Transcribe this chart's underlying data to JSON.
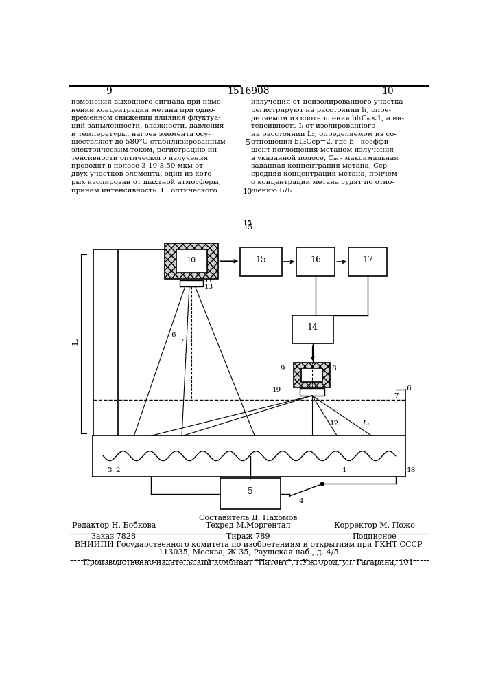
{
  "page_num_left": "9",
  "page_num_center": "1516908",
  "page_num_right": "10",
  "text_left": [
    "изменения выходного сигнала при изме-",
    "нении концентрации метана при одно-",
    "временном снижении влияния флуктуа-",
    "ций запыленности, влажности, давления",
    "и температуры, нагрев элемента осу-",
    "ществляют до 580°С стабилизированным",
    "электрическим током, регистрацию ин-",
    "тенсивности оптического излучения",
    "проводят в полосе 3,19-3,59 мкм от",
    "двух участков элемента, один из кото-",
    "рых изолирован от шахтной атмосферы,",
    "причем интенсивность  I₁  оптического"
  ],
  "text_right": [
    "излучения от неизолированного участка",
    "регистрируют на расстоянии l₁, опре-",
    "деляемом из соотношения bl₁Cₘ<1, а ин-",
    "тенсивность Iᵢ от изолированного -",
    "на расстоянии L₂, определяемом из со-",
    "отношения bL₂Cср=2, где b - коэффи-",
    "шент поглощения метаном излучения",
    "в указанной полосе, Сₘ - максимальная",
    "заданная концентрация метана, Сср-",
    "средняя концентрация метана, причем",
    "о концентрации метана судят по отно-",
    "шению I₁/Iᵢ."
  ],
  "footer_line1_center": "Составитель Д. Пахомов",
  "footer_editor": "Редактор Н. Бобкова",
  "footer_techred": "Техред М.Моргентал",
  "footer_corrector": "Корректор М. Пожо",
  "footer_order": "Заказ 7828",
  "footer_tirage": "Тираж 789",
  "footer_podpisnoe": "Подписное",
  "footer_vniiipi": "ВНИИПИ Государственного комитета по изобретениям и открытиям при ГКНТ СССР",
  "footer_address": "113035, Москва, Ж-35, Раушская наб., д. 4/5",
  "footer_publisher": "Производственно-издательский комбинат \"Патент\", г.Ужгород, ул. Гагарина, 101"
}
